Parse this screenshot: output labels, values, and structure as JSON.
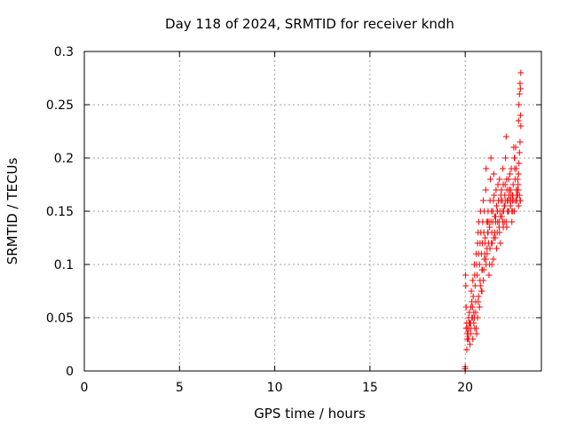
{
  "chart_data": {
    "type": "scatter",
    "title": "Day 118 of 2024, SRMTID for receiver kndh",
    "xlabel": "GPS time / hours",
    "ylabel": "SRMTID / TECUs",
    "xlim": [
      0,
      24
    ],
    "ylim": [
      0,
      0.3
    ],
    "x_ticks": [
      0,
      5,
      10,
      15,
      20
    ],
    "x_tick_labels": [
      "0",
      "5",
      "10",
      "15",
      "20"
    ],
    "y_ticks": [
      0,
      0.05,
      0.1,
      0.15,
      0.2,
      0.25,
      0.3
    ],
    "y_tick_labels": [
      "0",
      "0.05",
      "0.1",
      "0.15",
      "0.2",
      "0.25",
      "0.3"
    ],
    "grid": true,
    "marker": "plus",
    "color": "#ff0000",
    "series": [
      {
        "name": "SRMTID",
        "x": [
          20.0,
          20.0,
          20.0,
          20.02,
          20.03,
          20.05,
          20.08,
          20.1,
          20.12,
          20.15,
          20.18,
          20.2,
          20.22,
          20.25,
          20.28,
          20.3,
          20.32,
          20.35,
          20.38,
          20.4,
          20.42,
          20.45,
          20.48,
          20.5,
          20.52,
          20.55,
          20.58,
          20.6,
          20.62,
          20.65,
          20.68,
          20.7,
          20.72,
          20.75,
          20.78,
          20.8,
          20.82,
          20.85,
          20.88,
          20.9,
          20.92,
          20.95,
          20.98,
          21.0,
          21.02,
          21.05,
          21.08,
          21.1,
          21.12,
          21.15,
          21.18,
          21.2,
          21.22,
          21.25,
          21.28,
          21.3,
          21.32,
          21.35,
          21.38,
          21.4,
          21.42,
          21.45,
          21.48,
          21.5,
          21.52,
          21.55,
          21.58,
          21.6,
          21.62,
          21.65,
          21.68,
          21.7,
          21.72,
          21.75,
          21.78,
          21.8,
          21.82,
          21.85,
          21.88,
          21.9,
          21.92,
          21.95,
          21.98,
          22.0,
          22.02,
          22.05,
          22.08,
          22.1,
          22.12,
          22.15,
          22.18,
          22.2,
          22.22,
          22.25,
          22.28,
          22.3,
          22.32,
          22.35,
          22.38,
          22.4,
          22.42,
          22.45,
          22.48,
          22.5,
          22.52,
          22.55,
          22.58,
          22.6,
          22.62,
          22.65,
          22.68,
          22.7,
          22.72,
          22.75,
          22.78,
          22.8,
          22.82,
          22.85,
          22.88,
          22.9,
          22.92,
          20.05,
          20.1,
          20.15,
          20.2,
          20.25,
          20.3,
          20.35,
          20.4,
          20.45,
          20.5,
          20.55,
          20.6,
          20.65,
          20.7,
          20.75,
          20.8,
          20.85,
          20.9,
          20.95,
          21.0,
          21.05,
          21.1,
          21.15,
          21.2,
          21.25,
          21.3,
          21.35,
          21.4,
          21.45,
          21.5,
          21.55,
          21.6,
          21.65,
          21.7,
          21.75,
          21.8,
          21.85,
          21.9,
          21.95,
          22.0,
          22.05,
          22.1,
          22.15,
          22.2,
          22.25,
          22.3,
          22.35,
          22.4,
          22.45,
          22.5,
          22.55,
          22.6,
          22.65,
          22.7,
          22.75,
          22.8,
          22.85,
          22.9,
          20.08,
          20.18,
          20.28,
          20.38,
          20.48,
          20.58,
          20.68,
          20.78,
          20.88,
          20.98,
          21.08,
          21.18,
          21.28,
          21.38,
          21.48,
          21.58,
          21.68,
          21.78,
          21.88,
          21.98,
          22.08,
          22.18,
          22.28,
          22.38,
          22.48,
          22.58,
          22.68,
          22.78,
          22.88,
          22.92,
          22.9,
          22.88,
          22.85,
          22.82,
          22.8,
          22.78,
          22.75
        ],
        "y": [
          0.0,
          0.002,
          0.004,
          0.09,
          0.08,
          0.06,
          0.045,
          0.035,
          0.04,
          0.03,
          0.05,
          0.04,
          0.055,
          0.045,
          0.035,
          0.06,
          0.075,
          0.065,
          0.05,
          0.085,
          0.07,
          0.055,
          0.1,
          0.09,
          0.08,
          0.065,
          0.11,
          0.1,
          0.09,
          0.12,
          0.13,
          0.11,
          0.14,
          0.1,
          0.12,
          0.15,
          0.13,
          0.11,
          0.095,
          0.12,
          0.14,
          0.16,
          0.13,
          0.15,
          0.11,
          0.125,
          0.17,
          0.19,
          0.14,
          0.11,
          0.13,
          0.15,
          0.12,
          0.14,
          0.1,
          0.16,
          0.18,
          0.2,
          0.15,
          0.13,
          0.12,
          0.14,
          0.16,
          0.185,
          0.165,
          0.145,
          0.125,
          0.14,
          0.17,
          0.155,
          0.13,
          0.15,
          0.175,
          0.16,
          0.14,
          0.18,
          0.15,
          0.12,
          0.165,
          0.17,
          0.145,
          0.16,
          0.19,
          0.175,
          0.15,
          0.14,
          0.165,
          0.16,
          0.2,
          0.22,
          0.18,
          0.17,
          0.15,
          0.16,
          0.18,
          0.165,
          0.17,
          0.16,
          0.155,
          0.17,
          0.19,
          0.15,
          0.16,
          0.165,
          0.175,
          0.21,
          0.2,
          0.19,
          0.18,
          0.16,
          0.17,
          0.16,
          0.165,
          0.18,
          0.17,
          0.235,
          0.25,
          0.26,
          0.27,
          0.265,
          0.28,
          0.04,
          0.03,
          0.035,
          0.045,
          0.025,
          0.04,
          0.05,
          0.03,
          0.045,
          0.04,
          0.055,
          0.035,
          0.05,
          0.07,
          0.06,
          0.08,
          0.075,
          0.095,
          0.085,
          0.105,
          0.12,
          0.1,
          0.115,
          0.13,
          0.09,
          0.115,
          0.14,
          0.1,
          0.15,
          0.125,
          0.13,
          0.145,
          0.115,
          0.14,
          0.16,
          0.13,
          0.145,
          0.17,
          0.15,
          0.135,
          0.155,
          0.175,
          0.14,
          0.16,
          0.15,
          0.17,
          0.185,
          0.165,
          0.14,
          0.15,
          0.16,
          0.2,
          0.21,
          0.165,
          0.17,
          0.155,
          0.165,
          0.16,
          0.02,
          0.03,
          0.045,
          0.06,
          0.05,
          0.04,
          0.065,
          0.085,
          0.075,
          0.095,
          0.105,
          0.14,
          0.135,
          0.12,
          0.105,
          0.125,
          0.15,
          0.135,
          0.16,
          0.14,
          0.155,
          0.135,
          0.15,
          0.16,
          0.165,
          0.15,
          0.19,
          0.17,
          0.16,
          0.23,
          0.24,
          0.215,
          0.205,
          0.195,
          0.185,
          0.175,
          0.165
        ]
      }
    ]
  }
}
